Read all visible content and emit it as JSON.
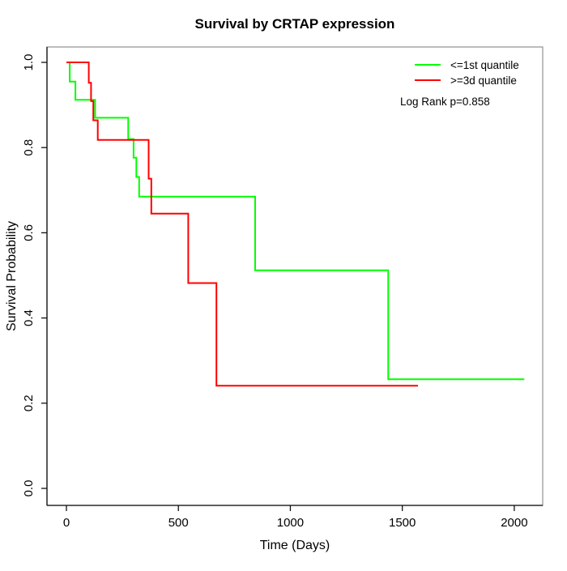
{
  "chart_data": {
    "type": "line",
    "subtype": "kaplan-meier-step",
    "title": "Survival by CRTAP expression",
    "xlabel": "Time (Days)",
    "ylabel": "Survival Probability",
    "x_ticks": [
      0,
      500,
      1000,
      1500,
      2000
    ],
    "y_ticks": [
      "0.0",
      "0.2",
      "0.4",
      "0.6",
      "0.8",
      "1.0"
    ],
    "xlim": [
      -85,
      2125
    ],
    "ylim": [
      -0.04,
      1.035
    ],
    "grid": false,
    "legend_position": "top-right",
    "annotation": "Log Rank p=0.858",
    "colors": {
      "group1": "#00ff00",
      "group2": "#ff0000",
      "box": "#999999",
      "text": "#000000"
    },
    "series": [
      {
        "name": "<=1st quantile",
        "color": "#00ff00",
        "points": [
          [
            0,
            1.0
          ],
          [
            15,
            1.0
          ],
          [
            15,
            0.955
          ],
          [
            40,
            0.955
          ],
          [
            40,
            0.912
          ],
          [
            128,
            0.912
          ],
          [
            128,
            0.87
          ],
          [
            276,
            0.87
          ],
          [
            276,
            0.82
          ],
          [
            300,
            0.82
          ],
          [
            300,
            0.776
          ],
          [
            312,
            0.776
          ],
          [
            312,
            0.731
          ],
          [
            325,
            0.731
          ],
          [
            325,
            0.685
          ],
          [
            843,
            0.685
          ],
          [
            843,
            0.512
          ],
          [
            1437,
            0.512
          ],
          [
            1437,
            0.256
          ],
          [
            2045,
            0.256
          ]
        ]
      },
      {
        "name": ">=3d quantile",
        "color": "#ff0000",
        "points": [
          [
            0,
            1.0
          ],
          [
            100,
            1.0
          ],
          [
            100,
            0.952
          ],
          [
            110,
            0.952
          ],
          [
            110,
            0.909
          ],
          [
            120,
            0.909
          ],
          [
            120,
            0.864
          ],
          [
            140,
            0.864
          ],
          [
            140,
            0.818
          ],
          [
            367,
            0.818
          ],
          [
            367,
            0.727
          ],
          [
            379,
            0.727
          ],
          [
            379,
            0.645
          ],
          [
            544,
            0.645
          ],
          [
            544,
            0.482
          ],
          [
            670,
            0.482
          ],
          [
            670,
            0.241
          ],
          [
            1570,
            0.241
          ]
        ]
      }
    ]
  }
}
